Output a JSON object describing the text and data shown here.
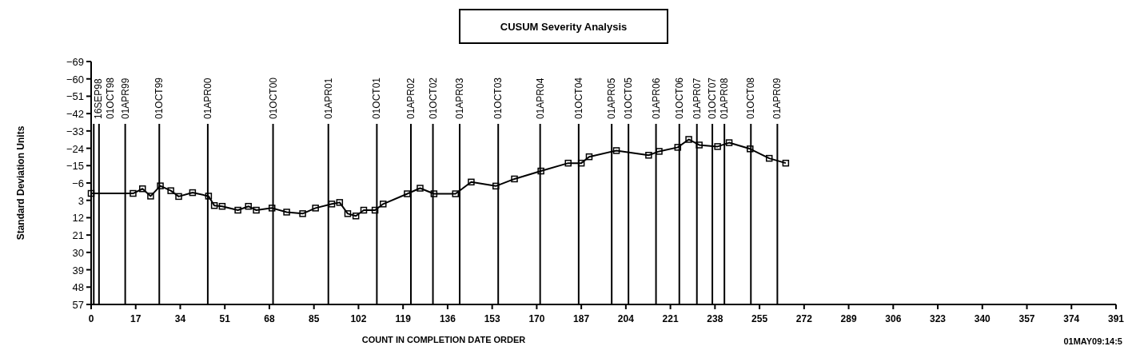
{
  "chart_data": {
    "type": "line",
    "title": "CUSUM Severity Analysis",
    "xlabel": "COUNT IN COMPLETION DATE ORDER",
    "ylabel": "Standard Deviation Units",
    "annotations": [
      "01MAY09:14:5"
    ],
    "series": [
      {
        "color": "#000000",
        "x": [
          0,
          16,
          19.6,
          22.7,
          26.4,
          30.4,
          33.4,
          38.7,
          44.8,
          47,
          50,
          56,
          60,
          63,
          69,
          74.6,
          80.7,
          85.6,
          91.8,
          94.8,
          97.9,
          101,
          104,
          108.3,
          111.4,
          120.6,
          125.5,
          130.8,
          139,
          145,
          154.4,
          161.5,
          171.6,
          182,
          187,
          190,
          200.4,
          212.7,
          216.7,
          223.8,
          228,
          232,
          239,
          243.4,
          251.4,
          258.7,
          265
        ],
        "values": [
          -0.6,
          -0.6,
          -3,
          0.8,
          -4.5,
          -2,
          1,
          -1,
          0.8,
          5.7,
          6.1,
          8.1,
          6.1,
          8.1,
          7,
          9.1,
          9.9,
          7,
          4.9,
          4.1,
          9.9,
          11.1,
          8.1,
          8.1,
          4.9,
          -0.4,
          -3.3,
          -0.4,
          -0.4,
          -6.5,
          -4.4,
          -8.1,
          -12.2,
          -16.3,
          -16.3,
          -19.6,
          -22.8,
          -20.4,
          -22.4,
          -24.5,
          -28.6,
          -25.7,
          -24.9,
          -26.9,
          -23.7,
          -18.8,
          -16.3
        ]
      }
    ],
    "xlim": [
      0,
      391
    ],
    "xticks": [
      0,
      17,
      34,
      51,
      68,
      85,
      102,
      119,
      136,
      153,
      170,
      187,
      204,
      221,
      238,
      255,
      272,
      289,
      306,
      323,
      340,
      357,
      374,
      391
    ],
    "ylim": [
      57,
      -69
    ],
    "yticks": [
      -69,
      -60,
      -51,
      -42,
      -33,
      -24,
      -15,
      -6,
      3,
      12,
      21,
      30,
      39,
      48,
      57
    ],
    "marker": "square",
    "line_style": "solid",
    "grid": false,
    "ref_lines": [
      {
        "axis": "x",
        "value": 1,
        "label": "16SEP98"
      },
      {
        "axis": "x",
        "value": 3,
        "label": "01OCT98"
      },
      {
        "axis": "x",
        "value": 13,
        "label": "01APR99"
      },
      {
        "axis": "x",
        "value": 26,
        "label": "01OCT99"
      },
      {
        "axis": "x",
        "value": 44.5,
        "label": "01APR00"
      },
      {
        "axis": "x",
        "value": 69.4,
        "label": "01OCT00"
      },
      {
        "axis": "x",
        "value": 90.5,
        "label": "01APR01"
      },
      {
        "axis": "x",
        "value": 109,
        "label": "01OCT01"
      },
      {
        "axis": "x",
        "value": 122,
        "label": "01APR02"
      },
      {
        "axis": "x",
        "value": 130.4,
        "label": "01OCT02"
      },
      {
        "axis": "x",
        "value": 140.6,
        "label": "01APR03"
      },
      {
        "axis": "x",
        "value": 155.3,
        "label": "01OCT03"
      },
      {
        "axis": "x",
        "value": 171.3,
        "label": "01APR04"
      },
      {
        "axis": "x",
        "value": 186,
        "label": "01OCT04"
      },
      {
        "axis": "x",
        "value": 198.6,
        "label": "01APR05"
      },
      {
        "axis": "x",
        "value": 205,
        "label": "01OCT05"
      },
      {
        "axis": "x",
        "value": 215.5,
        "label": "01APR06"
      },
      {
        "axis": "x",
        "value": 224.4,
        "label": "01OCT06"
      },
      {
        "axis": "x",
        "value": 231.1,
        "label": "01APR07"
      },
      {
        "axis": "x",
        "value": 237,
        "label": "01OCT07"
      },
      {
        "axis": "x",
        "value": 241.6,
        "label": "01APR08"
      },
      {
        "axis": "x",
        "value": 251.7,
        "label": "01OCT08"
      },
      {
        "axis": "x",
        "value": 261.8,
        "label": "01APR09"
      }
    ]
  }
}
